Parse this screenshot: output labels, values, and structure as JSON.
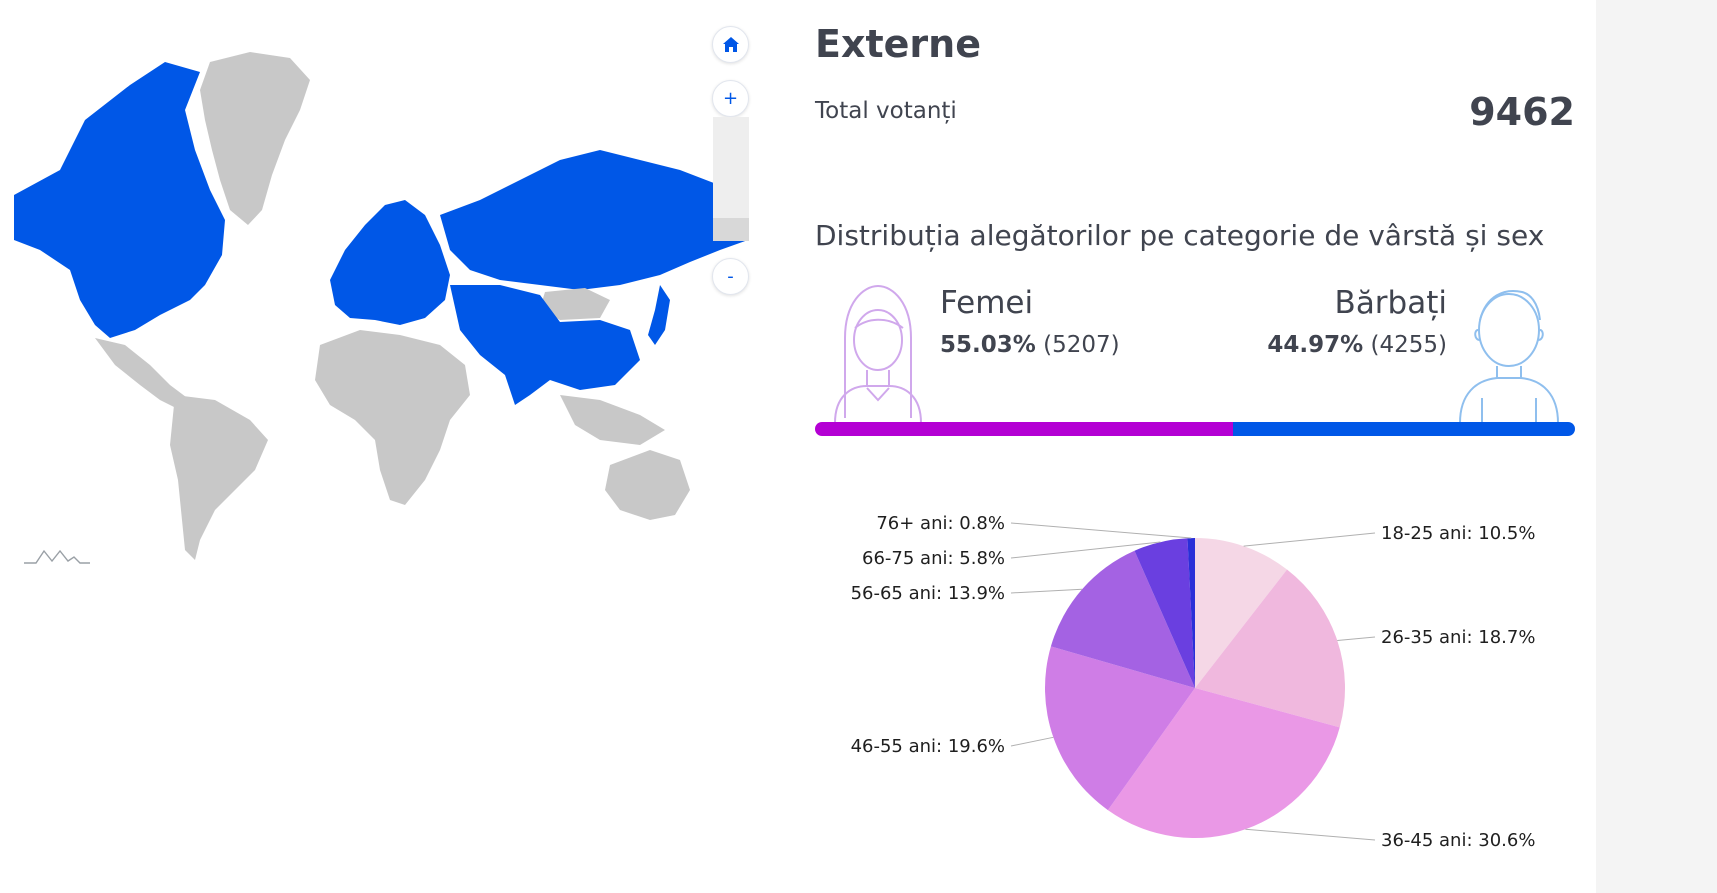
{
  "map": {
    "controls": {
      "home_glyph": "⌂",
      "zoom_in": "+",
      "zoom_out": "-"
    },
    "colors": {
      "highlight": "#0057e7",
      "default": "#c8c8c8"
    },
    "icons": [
      "home-icon",
      "credits-logo-icon"
    ]
  },
  "panel": {
    "title": "Externe",
    "total_label": "Total votanți",
    "total_value": "9462",
    "distribution_title": "Distribuția alegătorilor pe categorie de vârstă și sex"
  },
  "gender": {
    "female": {
      "label": "Femei",
      "percent": "55.03%",
      "count": "(5207)",
      "share": 0.5503,
      "color": "#b400d4"
    },
    "male": {
      "label": "Bărbați",
      "percent": "44.97%",
      "count": "(4255)",
      "share": 0.4497,
      "color": "#0057e7"
    }
  },
  "chart_data": {
    "type": "pie",
    "slices": [
      {
        "label": "18-25 ani: 10.5%",
        "value": 10.5,
        "color": "#f5d7e6",
        "side": "right"
      },
      {
        "label": "26-35 ani: 18.7%",
        "value": 18.7,
        "color": "#f0b8de",
        "side": "right"
      },
      {
        "label": "36-45 ani: 30.6%",
        "value": 30.6,
        "color": "#ea98e6",
        "side": "right"
      },
      {
        "label": "46-55 ani: 19.6%",
        "value": 19.6,
        "color": "#cf7de6",
        "side": "left"
      },
      {
        "label": "56-65 ani: 13.9%",
        "value": 13.9,
        "color": "#a462e3",
        "side": "left"
      },
      {
        "label": "66-75 ani: 5.8%",
        "value": 5.8,
        "color": "#6a3fe0",
        "side": "left"
      },
      {
        "label": "76+ ani: 0.8%",
        "value": 0.8,
        "color": "#2a2fd8",
        "side": "left"
      }
    ]
  }
}
